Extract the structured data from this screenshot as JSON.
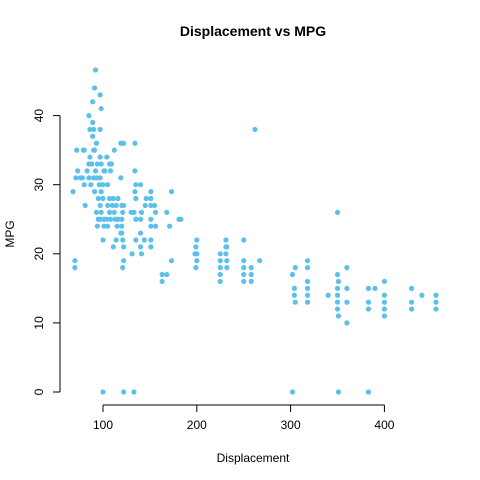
{
  "chart_data": {
    "type": "scatter",
    "title": "Displacement vs MPG",
    "xlabel": "Displacement",
    "ylabel": "MPG",
    "xlim": [
      68,
      455
    ],
    "ylim": [
      0,
      46.6
    ],
    "xticks": [
      100,
      200,
      300,
      400
    ],
    "yticks": [
      0,
      10,
      20,
      30,
      40
    ],
    "point_color": "#5bc0eb",
    "grid": false,
    "legend": "none",
    "points": [
      [
        68,
        29
      ],
      [
        70,
        18
      ],
      [
        70,
        19
      ],
      [
        71,
        31
      ],
      [
        72,
        35
      ],
      [
        73,
        32
      ],
      [
        76,
        31
      ],
      [
        78,
        31
      ],
      [
        79,
        35
      ],
      [
        80,
        30
      ],
      [
        80,
        35
      ],
      [
        81,
        27
      ],
      [
        83,
        32
      ],
      [
        85,
        31
      ],
      [
        85,
        33
      ],
      [
        85,
        40
      ],
      [
        86,
        34
      ],
      [
        86,
        38
      ],
      [
        87,
        30
      ],
      [
        88,
        33
      ],
      [
        89,
        37
      ],
      [
        89,
        39
      ],
      [
        89,
        42
      ],
      [
        90,
        31
      ],
      [
        90,
        35
      ],
      [
        90,
        38
      ],
      [
        91,
        29
      ],
      [
        91,
        35
      ],
      [
        91,
        44
      ],
      [
        92,
        32
      ],
      [
        92,
        46.6
      ],
      [
        93,
        26
      ],
      [
        93,
        31
      ],
      [
        93,
        36
      ],
      [
        94,
        24
      ],
      [
        94,
        33
      ],
      [
        95,
        25
      ],
      [
        95,
        28
      ],
      [
        96,
        30
      ],
      [
        97,
        25
      ],
      [
        97,
        27
      ],
      [
        97,
        31
      ],
      [
        97,
        34
      ],
      [
        97,
        38
      ],
      [
        97,
        43
      ],
      [
        98,
        29
      ],
      [
        98,
        33
      ],
      [
        98,
        26
      ],
      [
        98,
        41
      ],
      [
        100,
        0
      ],
      [
        100,
        22
      ],
      [
        100,
        28
      ],
      [
        100,
        30
      ],
      [
        101,
        32
      ],
      [
        101,
        25
      ],
      [
        101,
        24
      ],
      [
        102,
        32
      ],
      [
        104,
        25
      ],
      [
        104,
        34
      ],
      [
        105,
        30
      ],
      [
        105,
        27
      ],
      [
        105,
        24
      ],
      [
        107,
        33
      ],
      [
        107,
        26
      ],
      [
        107,
        28
      ],
      [
        108,
        32
      ],
      [
        108,
        25
      ],
      [
        109,
        33
      ],
      [
        110,
        27
      ],
      [
        111,
        21
      ],
      [
        111,
        28
      ],
      [
        112,
        35
      ],
      [
        112,
        26
      ],
      [
        113,
        25
      ],
      [
        114,
        22
      ],
      [
        114,
        27
      ],
      [
        115,
        24
      ],
      [
        116,
        25
      ],
      [
        116,
        28
      ],
      [
        119,
        31
      ],
      [
        119,
        23
      ],
      [
        119,
        36
      ],
      [
        120,
        23
      ],
      [
        120,
        24
      ],
      [
        120,
        25
      ],
      [
        120,
        27
      ],
      [
        121,
        22
      ],
      [
        121,
        26
      ],
      [
        121,
        18
      ],
      [
        122,
        0
      ],
      [
        122,
        19
      ],
      [
        122,
        21
      ],
      [
        122,
        27
      ],
      [
        122,
        36
      ],
      [
        130,
        26
      ],
      [
        131,
        20
      ],
      [
        133,
        0
      ],
      [
        133,
        26
      ],
      [
        134,
        29
      ],
      [
        134,
        32
      ],
      [
        134,
        36
      ],
      [
        135,
        28
      ],
      [
        135,
        25
      ],
      [
        135,
        22
      ],
      [
        135,
        30
      ],
      [
        140,
        30
      ],
      [
        140,
        25
      ],
      [
        140,
        23
      ],
      [
        140,
        21
      ],
      [
        141,
        26
      ],
      [
        141,
        20
      ],
      [
        144,
        22
      ],
      [
        145,
        27
      ],
      [
        146,
        28
      ],
      [
        151,
        25
      ],
      [
        151,
        28
      ],
      [
        151,
        22
      ],
      [
        151,
        21
      ],
      [
        151,
        24
      ],
      [
        151,
        27
      ],
      [
        151,
        29
      ],
      [
        155,
        27
      ],
      [
        156,
        26
      ],
      [
        156,
        24
      ],
      [
        163,
        17
      ],
      [
        163,
        16
      ],
      [
        168,
        17
      ],
      [
        168,
        26
      ],
      [
        171,
        24
      ],
      [
        173,
        19
      ],
      [
        173,
        29
      ],
      [
        181,
        25
      ],
      [
        183,
        25
      ],
      [
        198,
        20
      ],
      [
        199,
        21
      ],
      [
        199,
        18
      ],
      [
        200,
        20
      ],
      [
        200,
        19
      ],
      [
        200,
        22
      ],
      [
        225,
        19
      ],
      [
        225,
        18
      ],
      [
        225,
        17
      ],
      [
        225,
        20
      ],
      [
        225,
        16
      ],
      [
        231,
        21
      ],
      [
        231,
        20
      ],
      [
        231,
        22
      ],
      [
        232,
        19
      ],
      [
        232,
        18
      ],
      [
        232,
        21
      ],
      [
        250,
        18
      ],
      [
        250,
        17
      ],
      [
        250,
        16
      ],
      [
        250,
        19
      ],
      [
        250,
        22
      ],
      [
        258,
        18
      ],
      [
        258,
        17
      ],
      [
        258,
        16
      ],
      [
        262,
        38
      ],
      [
        267,
        19
      ],
      [
        302,
        0
      ],
      [
        302,
        17
      ],
      [
        304,
        15
      ],
      [
        304,
        14
      ],
      [
        305,
        18
      ],
      [
        305,
        13
      ],
      [
        318,
        13
      ],
      [
        318,
        14
      ],
      [
        318,
        15
      ],
      [
        318,
        16
      ],
      [
        318,
        18
      ],
      [
        318,
        19
      ],
      [
        340,
        14
      ],
      [
        350,
        26
      ],
      [
        350,
        17
      ],
      [
        350,
        15
      ],
      [
        350,
        14
      ],
      [
        350,
        13
      ],
      [
        350,
        12
      ],
      [
        351,
        0
      ],
      [
        351,
        11
      ],
      [
        351,
        16
      ],
      [
        360,
        10
      ],
      [
        360,
        13
      ],
      [
        360,
        15
      ],
      [
        360,
        18
      ],
      [
        383,
        0
      ],
      [
        383,
        15
      ],
      [
        383,
        12
      ],
      [
        383,
        13
      ],
      [
        390,
        15
      ],
      [
        400,
        16
      ],
      [
        400,
        14
      ],
      [
        400,
        13
      ],
      [
        400,
        12
      ],
      [
        400,
        11
      ],
      [
        429,
        13
      ],
      [
        429,
        15
      ],
      [
        429,
        12
      ],
      [
        440,
        14
      ],
      [
        455,
        14
      ],
      [
        455,
        12
      ],
      [
        455,
        13
      ]
    ]
  }
}
